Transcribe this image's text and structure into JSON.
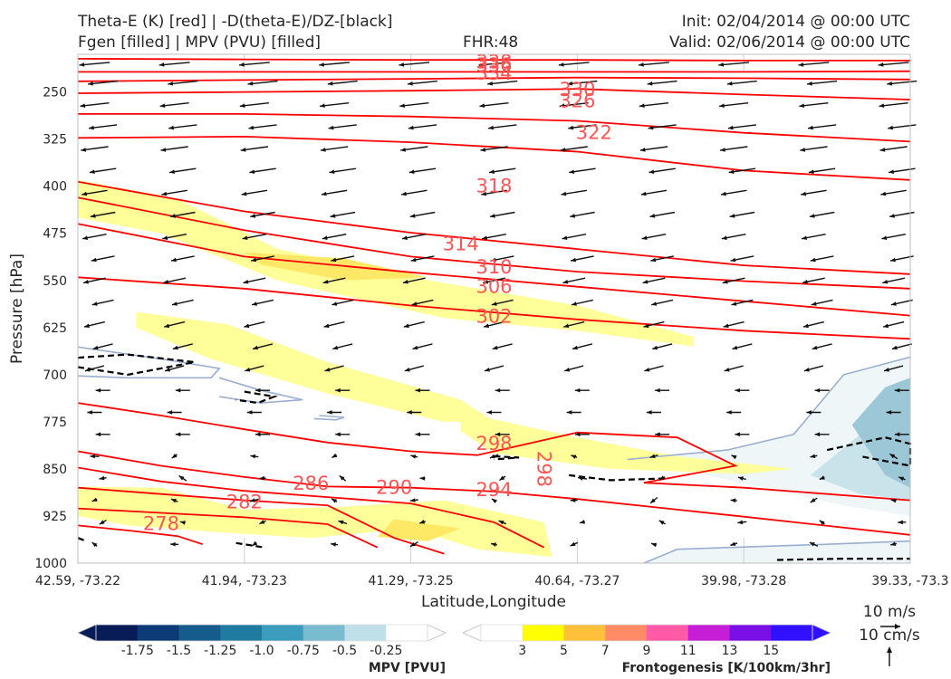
{
  "header": {
    "title_line1": "Theta-E (K) [red] | -D(theta-E)/DZ-[black]",
    "title_line2": "Fgen [filled] | MPV (PVU) [filled]",
    "fhr": "FHR:48",
    "init": "Init: 02/04/2014 @ 00:00 UTC",
    "valid": "Valid: 02/06/2014 @ 00:00 UTC"
  },
  "chart_data": {
    "type": "cross-section",
    "xlabel": "Latitude,Longitude",
    "ylabel": "Pressure [hPa]",
    "x_ticks": [
      "42.59, -73.22",
      "41.94, -73.23",
      "41.29, -73.25",
      "40.64, -73.27",
      "39.98, -73.28",
      "39.33, -73.3"
    ],
    "y_ticks": [
      250,
      325,
      400,
      475,
      550,
      625,
      700,
      775,
      850,
      925,
      1000
    ],
    "ylim": [
      1000,
      190
    ],
    "y_reversed": true,
    "theta_e_contours": [
      {
        "value": 338,
        "label": "338",
        "points": [
          [
            0,
            197
          ],
          [
            1,
            198
          ],
          [
            2,
            199
          ],
          [
            3,
            199
          ],
          [
            4,
            200
          ],
          [
            5,
            200
          ]
        ]
      },
      {
        "value": 334,
        "label": "334",
        "points": [
          [
            0,
            218
          ],
          [
            1,
            218
          ],
          [
            2,
            218
          ],
          [
            2.5,
            218
          ],
          [
            3,
            218
          ],
          [
            4,
            218
          ],
          [
            5,
            217
          ]
        ]
      },
      {
        "value": 330,
        "label": "330",
        "points": [
          [
            0,
            233
          ],
          [
            1,
            231
          ],
          [
            2,
            229
          ],
          [
            3,
            227
          ],
          [
            4,
            228
          ],
          [
            5,
            230
          ]
        ]
      },
      {
        "value": 326,
        "label": "326",
        "points": [
          [
            0,
            252
          ],
          [
            1,
            250
          ],
          [
            2,
            248
          ],
          [
            3,
            245
          ],
          [
            4,
            254
          ],
          [
            5,
            262
          ]
        ]
      },
      {
        "value": 322,
        "label": "322",
        "points": [
          [
            0,
            285
          ],
          [
            1,
            285
          ],
          [
            2,
            289
          ],
          [
            3,
            296
          ],
          [
            4,
            315
          ],
          [
            5,
            329
          ]
        ]
      },
      {
        "value": 318,
        "label": "318",
        "points": [
          [
            0,
            323
          ],
          [
            1,
            321
          ],
          [
            2,
            330
          ],
          [
            3,
            345
          ],
          [
            4,
            375
          ],
          [
            5,
            390
          ]
        ]
      },
      {
        "value": 314,
        "label": "314",
        "points": [
          [
            0,
            393
          ],
          [
            1,
            440
          ],
          [
            2,
            474
          ],
          [
            3,
            500
          ],
          [
            4,
            526
          ],
          [
            5,
            540
          ]
        ]
      },
      {
        "value": 310,
        "label": "310",
        "points": [
          [
            0,
            418
          ],
          [
            1,
            470
          ],
          [
            2,
            512
          ],
          [
            3,
            536
          ],
          [
            4,
            551
          ],
          [
            5,
            563
          ]
        ]
      },
      {
        "value": 306,
        "label": "306",
        "points": [
          [
            0,
            460
          ],
          [
            1,
            512
          ],
          [
            2,
            537
          ],
          [
            3,
            560
          ],
          [
            4,
            583
          ],
          [
            5,
            606
          ]
        ]
      },
      {
        "value": 302,
        "label": "302",
        "points": [
          [
            0,
            545
          ],
          [
            1,
            563
          ],
          [
            2,
            590
          ],
          [
            3,
            612
          ],
          [
            4,
            630
          ],
          [
            5,
            643
          ]
        ]
      },
      {
        "value": 298,
        "label": "298",
        "points": [
          [
            0,
            745
          ],
          [
            0.5,
            765
          ],
          [
            1,
            787
          ],
          [
            1.5,
            808
          ],
          [
            2,
            822
          ],
          [
            2.4,
            828
          ],
          [
            3,
            792
          ],
          [
            3.6,
            800
          ],
          [
            3.95,
            845
          ],
          [
            3.4,
            872
          ],
          [
            4,
            880
          ],
          [
            5,
            900
          ]
        ]
      },
      {
        "value": 294,
        "label": "294",
        "points": [
          [
            0,
            822
          ],
          [
            0.5,
            845
          ],
          [
            1,
            863
          ],
          [
            1.5,
            878
          ],
          [
            2,
            880
          ],
          [
            2.5,
            886
          ],
          [
            3,
            898
          ],
          [
            4,
            926
          ],
          [
            5,
            955
          ]
        ]
      },
      {
        "value": 290,
        "label": "290",
        "points": [
          [
            0,
            848
          ],
          [
            0.5,
            870
          ],
          [
            1,
            885
          ],
          [
            1.5,
            895
          ],
          [
            2,
            905
          ],
          [
            2.5,
            935
          ],
          [
            2.8,
            975
          ]
        ]
      },
      {
        "value": 286,
        "label": "286",
        "points": [
          [
            0,
            880
          ],
          [
            0.5,
            890
          ],
          [
            1,
            900
          ],
          [
            1.5,
            908
          ],
          [
            1.9,
            960
          ],
          [
            2.2,
            985
          ]
        ]
      },
      {
        "value": 282,
        "label": "282",
        "points": [
          [
            0,
            913
          ],
          [
            0.5,
            920
          ],
          [
            1,
            927
          ],
          [
            1.5,
            938
          ],
          [
            1.8,
            975
          ]
        ]
      },
      {
        "value": 278,
        "label": "278",
        "points": [
          [
            0,
            940
          ],
          [
            0.3,
            948
          ],
          [
            0.6,
            957
          ],
          [
            0.75,
            970
          ]
        ]
      }
    ],
    "theta_e_label_positions": [
      {
        "label": "338",
        "x": 2.5,
        "y": 202
      },
      {
        "label": "336",
        "x": 2.5,
        "y": 207
      },
      {
        "label": "334",
        "x": 2.5,
        "y": 220
      },
      {
        "label": "330",
        "x": 3.0,
        "y": 246
      },
      {
        "label": "326",
        "x": 3.0,
        "y": 264
      },
      {
        "label": "322",
        "x": 3.1,
        "y": 315
      },
      {
        "label": "318",
        "x": 2.5,
        "y": 400
      },
      {
        "label": "314",
        "x": 2.3,
        "y": 492
      },
      {
        "label": "310",
        "x": 2.5,
        "y": 529
      },
      {
        "label": "306",
        "x": 2.5,
        "y": 560
      },
      {
        "label": "302",
        "x": 2.5,
        "y": 607
      },
      {
        "label": "298",
        "x": 2.5,
        "y": 810
      },
      {
        "label": "298",
        "x": 2.8,
        "y": 850,
        "rotate": 90
      },
      {
        "label": "294",
        "x": 2.5,
        "y": 883
      },
      {
        "label": "290",
        "x": 1.9,
        "y": 880
      },
      {
        "label": "286",
        "x": 1.4,
        "y": 873
      },
      {
        "label": "282",
        "x": 1.0,
        "y": 903
      },
      {
        "label": "278",
        "x": 0.5,
        "y": 937
      }
    ],
    "frontogenesis_filled": [
      {
        "level": 3,
        "color": "#ffff99",
        "points": [
          [
            0,
            390
          ],
          [
            0.6,
            420
          ],
          [
            1.2,
            500
          ],
          [
            2.0,
            545
          ],
          [
            3.0,
            590
          ],
          [
            3.7,
            640
          ],
          [
            3.7,
            655
          ],
          [
            3.0,
            630
          ],
          [
            2.2,
            610
          ],
          [
            1.2,
            550
          ],
          [
            0.5,
            475
          ],
          [
            0,
            450
          ]
        ]
      },
      {
        "level": 5,
        "color": "#ffe866",
        "points": [
          [
            1.0,
            505
          ],
          [
            1.6,
            515
          ],
          [
            2.1,
            545
          ],
          [
            1.6,
            550
          ],
          [
            1.1,
            525
          ]
        ]
      },
      {
        "level": 3,
        "color": "#ffff99",
        "points": [
          [
            0.35,
            600
          ],
          [
            0.9,
            620
          ],
          [
            1.5,
            680
          ],
          [
            2.3,
            740
          ],
          [
            2.5,
            775
          ],
          [
            2.2,
            775
          ],
          [
            1.5,
            730
          ],
          [
            0.8,
            675
          ],
          [
            0.35,
            625
          ]
        ]
      },
      {
        "level": 3,
        "color": "#ffff99",
        "points": [
          [
            2.3,
            760
          ],
          [
            3.0,
            800
          ],
          [
            3.6,
            830
          ],
          [
            4.3,
            850
          ],
          [
            4.0,
            858
          ],
          [
            3.2,
            850
          ],
          [
            2.5,
            825
          ],
          [
            2.3,
            790
          ]
        ]
      },
      {
        "level": 3,
        "color": "#ffff99",
        "points": [
          [
            0,
            878
          ],
          [
            0.5,
            880
          ],
          [
            1.0,
            915
          ],
          [
            1.6,
            910
          ],
          [
            2.2,
            900
          ],
          [
            2.8,
            935
          ],
          [
            2.85,
            990
          ],
          [
            2.4,
            978
          ],
          [
            2.0,
            945
          ],
          [
            1.4,
            960
          ],
          [
            0.8,
            950
          ],
          [
            0.3,
            940
          ],
          [
            0,
            925
          ]
        ]
      },
      {
        "level": 5,
        "color": "#ffe866",
        "points": [
          [
            1.9,
            930
          ],
          [
            2.3,
            945
          ],
          [
            2.1,
            965
          ],
          [
            1.8,
            958
          ]
        ]
      }
    ],
    "mpv_filled": [
      {
        "level": -0.25,
        "color": "#eef6f8",
        "points": [
          [
            3.3,
            835
          ],
          [
            3.9,
            820
          ],
          [
            4.3,
            795
          ],
          [
            4.6,
            700
          ],
          [
            4.9,
            680
          ],
          [
            5,
            672
          ],
          [
            5,
            925
          ],
          [
            4.6,
            908
          ],
          [
            4.2,
            885
          ],
          [
            3.7,
            855
          ]
        ]
      },
      {
        "level": -0.5,
        "color": "#c9e3ea",
        "points": [
          [
            4.4,
            860
          ],
          [
            4.7,
            795
          ],
          [
            5,
            770
          ],
          [
            5,
            900
          ],
          [
            4.7,
            890
          ]
        ]
      },
      {
        "level": -0.75,
        "color": "#9cc7d6",
        "points": [
          [
            4.65,
            780
          ],
          [
            4.85,
            720
          ],
          [
            5,
            705
          ],
          [
            5,
            880
          ],
          [
            4.85,
            860
          ]
        ]
      },
      {
        "level": -0.25,
        "color": "#eef6f8",
        "points": [
          [
            3.4,
            1000
          ],
          [
            3.6,
            978
          ],
          [
            4.5,
            970
          ],
          [
            5,
            965
          ],
          [
            5,
            1000
          ]
        ]
      }
    ],
    "mpv_outline_contours": [
      {
        "points": [
          [
            0,
            656
          ],
          [
            0.5,
            675
          ],
          [
            0.85,
            690
          ],
          [
            0.8,
            705
          ],
          [
            0.3,
            705
          ],
          [
            0,
            702
          ]
        ]
      },
      {
        "points": [
          [
            0.85,
            705
          ],
          [
            1.1,
            725
          ],
          [
            1.35,
            740
          ],
          [
            1.1,
            745
          ],
          [
            0.85,
            735
          ]
        ]
      },
      {
        "points": [
          [
            1.45,
            765
          ],
          [
            1.6,
            768
          ],
          [
            1.55,
            772
          ],
          [
            1.42,
            770
          ]
        ]
      },
      {
        "points": [
          [
            3.3,
            835
          ],
          [
            3.9,
            820
          ],
          [
            4.3,
            795
          ],
          [
            4.6,
            700
          ],
          [
            5,
            672
          ]
        ]
      },
      {
        "points": [
          [
            3.4,
            1000
          ],
          [
            3.6,
            978
          ],
          [
            4.5,
            970
          ],
          [
            5,
            965
          ]
        ]
      }
    ],
    "dthetae_dz_contours": [
      {
        "points": [
          [
            0,
            673
          ],
          [
            0.3,
            668
          ],
          [
            0.7,
            680
          ],
          [
            0.5,
            690
          ],
          [
            0.3,
            700
          ],
          [
            0,
            688
          ]
        ]
      },
      {
        "points": [
          [
            1.0,
            727
          ],
          [
            1.18,
            735
          ],
          [
            1.08,
            745
          ],
          [
            0.95,
            740
          ]
        ]
      },
      {
        "points": [
          [
            2.5,
            830
          ],
          [
            2.65,
            832
          ],
          [
            2.5,
            835
          ]
        ]
      },
      {
        "points": [
          [
            2.95,
            860
          ],
          [
            3.2,
            868
          ],
          [
            3.55,
            865
          ]
        ]
      },
      {
        "points": [
          [
            4.5,
            820
          ],
          [
            4.85,
            800
          ],
          [
            5,
            810
          ],
          [
            5,
            845
          ],
          [
            4.9,
            840
          ],
          [
            4.7,
            830
          ]
        ]
      },
      {
        "points": [
          [
            0.95,
            968
          ],
          [
            1.12,
            975
          ]
        ]
      },
      {
        "points": [
          [
            0.0,
            960
          ],
          [
            0.05,
            965
          ]
        ]
      },
      {
        "points": [
          [
            4.2,
            995
          ],
          [
            4.6,
            993
          ],
          [
            5,
            993
          ]
        ]
      }
    ],
    "mpv_colorbar": {
      "title": "MPV [PVU]",
      "levels": [
        "-1.75",
        "-1.5",
        "-1.25",
        "-1.0",
        "-0.75",
        "-0.5",
        "-0.25"
      ],
      "colors": [
        "#081d58",
        "#0d3b77",
        "#155b8c",
        "#1f7ba0",
        "#3b9cbd",
        "#79bccf",
        "#bfe0e8",
        "#ffffff"
      ]
    },
    "fgen_colorbar": {
      "title": "Frontogenesis [K/100km/3hr]",
      "levels": [
        "3",
        "5",
        "7",
        "9",
        "11",
        "13",
        "15"
      ],
      "colors": [
        "#ffffff",
        "#ffff00",
        "#ffc13b",
        "#ff8a66",
        "#ff5aa8",
        "#c61ed6",
        "#7a10e6",
        "#3010ff"
      ]
    },
    "wind_reference": {
      "horizontal_label": "10 m/s",
      "vertical_label": "10 cm/s"
    }
  }
}
